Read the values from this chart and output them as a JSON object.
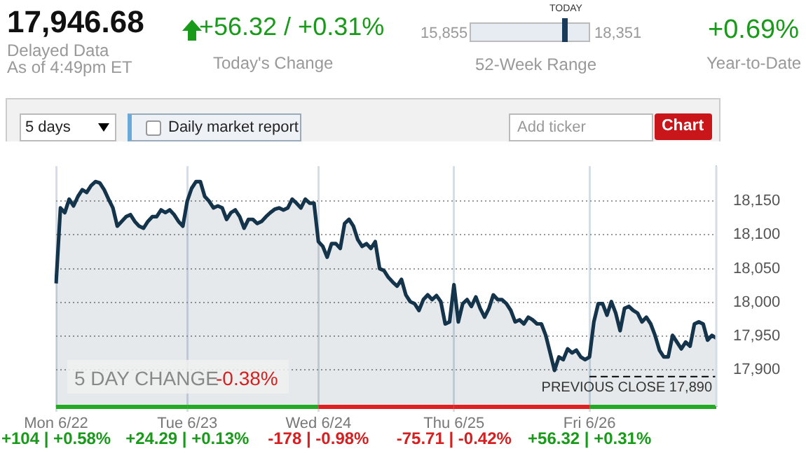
{
  "chart_data": {
    "type": "area",
    "title": "17,946.68",
    "annotations": [
      "Delayed Data",
      "As of 4:49pm ET",
      "+56.32 / +0.31%",
      "Today's Change",
      "15,855",
      "18,351",
      "TODAY",
      "52-Week Range",
      "+0.69%",
      "Year-to-Date",
      "5 days",
      "Daily market report",
      "Add ticker",
      "Chart",
      "5 DAY CHANGE",
      "-0.38%",
      "+104 | +0.58%",
      "+24.29 | +0.13%",
      "-178 | -0.98%",
      "-75.71 | -0.42%",
      "+56.32 | +0.31%"
    ],
    "categories": [
      "Mon 6/22",
      null,
      null,
      null,
      null,
      null,
      null,
      null,
      null,
      null,
      null,
      null,
      null,
      null,
      null,
      null,
      null,
      null,
      null,
      null,
      null,
      null,
      null,
      null,
      null,
      null,
      null,
      null,
      null,
      null,
      "Tue 6/23",
      null,
      null,
      null,
      null,
      null,
      null,
      null,
      null,
      null,
      null,
      null,
      null,
      null,
      null,
      null,
      null,
      null,
      null,
      null,
      null,
      null,
      null,
      null,
      null,
      null,
      null,
      null,
      null,
      null,
      "Wed 6/24",
      null,
      null,
      null,
      null,
      null,
      null,
      null,
      null,
      null,
      null,
      null,
      null,
      null,
      null,
      null,
      null,
      null,
      null,
      null,
      null,
      null,
      null,
      null,
      null,
      null,
      null,
      null,
      null,
      null,
      null,
      "Thu 6/25",
      null,
      null,
      null,
      null,
      null,
      null,
      null,
      null,
      null,
      null,
      null,
      null,
      null,
      null,
      null,
      null,
      null,
      null,
      null,
      null,
      null,
      null,
      null,
      null,
      null,
      null,
      null,
      null,
      null,
      null,
      "Fri 6/26",
      null,
      null,
      null,
      null,
      null,
      null,
      null,
      null,
      null,
      null,
      null,
      null,
      null,
      null,
      null,
      null,
      null,
      null,
      null,
      null,
      null,
      null,
      null,
      null,
      null,
      null,
      null,
      null,
      null
    ],
    "series": [
      {
        "color": "#14344c",
        "values": [
          18028,
          18140,
          18133,
          18153,
          18143,
          18157,
          18167,
          18163,
          18173,
          18179,
          18177,
          18167,
          18153,
          18140,
          18113,
          18120,
          18127,
          18130,
          18120,
          18113,
          18110,
          18120,
          18127,
          18127,
          18137,
          18133,
          18137,
          18130,
          18120,
          18113,
          18150,
          18169,
          18179,
          18179,
          18157,
          18150,
          18140,
          18143,
          18140,
          18123,
          18133,
          18137,
          18127,
          18110,
          18123,
          18123,
          18117,
          18120,
          18127,
          18133,
          18138,
          18140,
          18137,
          18140,
          18153,
          18147,
          18140,
          18153,
          18147,
          18147,
          18090,
          18083,
          18067,
          18087,
          18087,
          18080,
          18117,
          18123,
          18113,
          18093,
          18083,
          18087,
          18080,
          18090,
          18050,
          18047,
          18037,
          18030,
          18024,
          18034,
          18011,
          18001,
          17998,
          17988,
          18004,
          18011,
          18004,
          18010,
          18001,
          17968,
          17971,
          18026,
          17971,
          17998,
          18004,
          17994,
          18008,
          17991,
          17978,
          17991,
          18011,
          18004,
          18004,
          17998,
          17988,
          17971,
          17974,
          17968,
          17978,
          17974,
          17968,
          17968,
          17951,
          17925,
          17899,
          17919,
          17915,
          17931,
          17925,
          17929,
          17919,
          17915,
          17919,
          17971,
          17998,
          17998,
          17981,
          18001,
          17984,
          17958,
          17991,
          17994,
          17988,
          17984,
          17971,
          17978,
          17968,
          17951,
          17929,
          17919,
          17919,
          17951,
          17941,
          17931,
          17941,
          17935,
          17968,
          17971,
          17968,
          17944,
          17951,
          17947
        ]
      }
    ],
    "ylim": [
      17846,
      18202
    ],
    "yticks": [
      {
        "value": 17900,
        "label": "17,900"
      },
      {
        "value": 17950,
        "label": "17,950"
      },
      {
        "value": 18000,
        "label": "18,000"
      },
      {
        "value": 18050,
        "label": "18,050"
      },
      {
        "value": 18100,
        "label": "18,100"
      },
      {
        "value": 18150,
        "label": "18,150"
      }
    ],
    "ref_lines": [
      {
        "axis": "y",
        "value": 17890,
        "label": "PREVIOUS CLOSE 17,890",
        "color": "#000000",
        "line_style": "dashed"
      }
    ],
    "grid": true,
    "legend": false,
    "marker": "none",
    "line_style": "solid"
  }
}
